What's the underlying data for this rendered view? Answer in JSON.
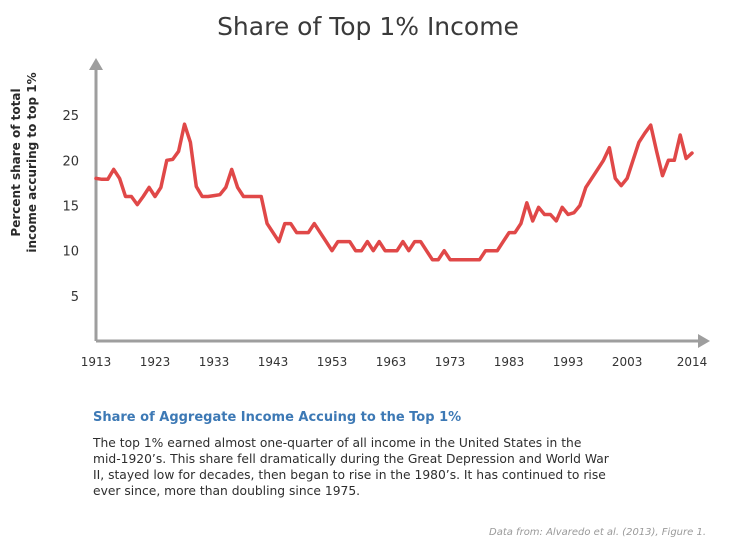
{
  "title": "Share of Top 1% Income",
  "chart_data": {
    "type": "line",
    "title": "Share of Top 1% Income",
    "xlabel": "",
    "ylabel": "Percent share of total income accuring to top 1%",
    "xlim": [
      1913,
      2014
    ],
    "ylim": [
      0,
      30
    ],
    "xticks": [
      "1913",
      "1923",
      "1933",
      "1943",
      "1953",
      "1963",
      "1973",
      "1983",
      "1993",
      "2003",
      "2014"
    ],
    "yticks": [
      "5",
      "10",
      "15",
      "20",
      "25"
    ],
    "series_color": "#e04848",
    "series": [
      {
        "name": "",
        "x": [
          1913,
          1914,
          1915,
          1916,
          1917,
          1918,
          1919,
          1920,
          1921,
          1922,
          1923,
          1924,
          1925,
          1926,
          1927,
          1928,
          1929,
          1930,
          1931,
          1932,
          1933,
          1934,
          1935,
          1936,
          1937,
          1938,
          1939,
          1940,
          1941,
          1942,
          1943,
          1944,
          1945,
          1946,
          1947,
          1948,
          1949,
          1950,
          1951,
          1952,
          1953,
          1954,
          1955,
          1956,
          1957,
          1958,
          1959,
          1960,
          1961,
          1962,
          1963,
          1964,
          1965,
          1966,
          1967,
          1968,
          1969,
          1970,
          1971,
          1972,
          1973,
          1974,
          1975,
          1976,
          1977,
          1978,
          1979,
          1980,
          1981,
          1982,
          1983,
          1984,
          1985,
          1986,
          1987,
          1988,
          1989,
          1990,
          1991,
          1992,
          1993,
          1994,
          1995,
          1996,
          1997,
          1998,
          1999,
          2000,
          2001,
          2002,
          2003,
          2004,
          2005,
          2006,
          2007,
          2008,
          2009,
          2010,
          2011,
          2012,
          2013,
          2014
        ],
        "values": [
          18,
          17.9,
          17.9,
          19,
          18,
          16,
          16,
          15.1,
          16,
          17,
          16,
          17,
          20,
          20.1,
          21,
          24,
          22,
          17.1,
          16,
          16,
          16.1,
          16.2,
          17,
          19,
          17,
          16,
          16,
          16,
          16,
          13,
          12,
          11,
          13,
          13,
          12,
          12,
          12,
          13,
          12,
          11,
          10,
          11,
          11,
          11,
          10,
          10,
          11,
          10,
          11,
          10,
          10,
          10,
          11,
          10,
          11,
          11,
          10,
          9,
          9,
          10,
          9,
          9,
          9,
          9,
          9,
          9,
          10,
          10,
          10,
          11,
          12,
          12,
          13,
          15.3,
          13.3,
          14.8,
          14,
          14,
          13.3,
          14.8,
          14,
          14.2,
          15,
          17,
          18,
          19,
          20,
          21.4,
          18,
          17.2,
          18,
          20,
          22,
          23,
          23.9,
          21,
          18.3,
          20,
          20,
          22.8,
          20.2,
          20.8
        ]
      }
    ]
  },
  "caption": {
    "title": "Share of Aggregate Income Accuing to the Top 1%",
    "lines": [
      "The top 1% earned almost one-quarter of all income in the United States in the",
      "mid-1920’s.  This share fell dramatically during the Great Depression and World War",
      "II, stayed low for decades, then began to rise in the 1980’s.  It has continued to rise",
      "ever since, more than doubling since 1975."
    ]
  },
  "source": "Data from: Alvaredo et al. (2013), Figure 1."
}
